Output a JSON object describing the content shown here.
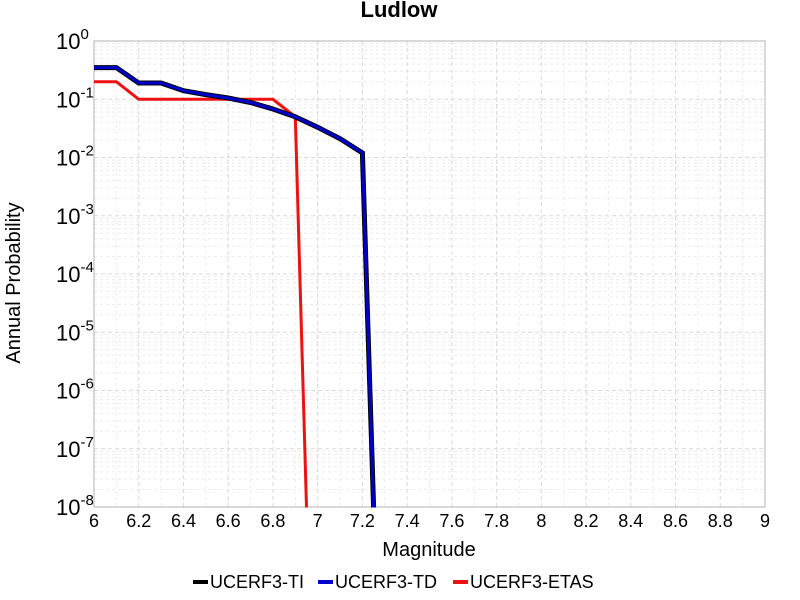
{
  "chart_data": {
    "type": "line",
    "title": "Ludlow",
    "xlabel": "Magnitude",
    "ylabel": "Annual Probability",
    "xlim": [
      6,
      9
    ],
    "ylim": [
      1e-08,
      1
    ],
    "y_scale": "log",
    "grid": true,
    "legend_position": "bottom",
    "x_ticks": [
      "6",
      "6.2",
      "6.4",
      "6.6",
      "6.8",
      "7",
      "7.2",
      "7.4",
      "7.6",
      "7.8",
      "8",
      "8.2",
      "8.4",
      "8.6",
      "8.8",
      "9"
    ],
    "y_ticks": [
      {
        "base": "10",
        "exp": "-8",
        "value": 1e-08
      },
      {
        "base": "10",
        "exp": "-7",
        "value": 1e-07
      },
      {
        "base": "10",
        "exp": "-6",
        "value": 1e-06
      },
      {
        "base": "10",
        "exp": "-5",
        "value": 1e-05
      },
      {
        "base": "10",
        "exp": "-4",
        "value": 0.0001
      },
      {
        "base": "10",
        "exp": "-3",
        "value": 0.001
      },
      {
        "base": "10",
        "exp": "-2",
        "value": 0.01
      },
      {
        "base": "10",
        "exp": "-1",
        "value": 0.1
      },
      {
        "base": "10",
        "exp": "0",
        "value": 1
      }
    ],
    "series": [
      {
        "name": "UCERF3-TI",
        "color": "#000000",
        "x": [
          6.0,
          6.1,
          6.2,
          6.3,
          6.4,
          6.5,
          6.6,
          6.7,
          6.8,
          6.9,
          7.0,
          7.1,
          7.2,
          7.25
        ],
        "y": [
          0.35,
          0.35,
          0.19,
          0.19,
          0.14,
          0.12,
          0.105,
          0.088,
          0.068,
          0.05,
          0.033,
          0.021,
          0.012,
          1e-09
        ]
      },
      {
        "name": "UCERF3-TD",
        "color": "#0000cc",
        "x": [
          6.0,
          6.1,
          6.2,
          6.3,
          6.4,
          6.5,
          6.6,
          6.7,
          6.8,
          6.9,
          7.0,
          7.1,
          7.2,
          7.25
        ],
        "y": [
          0.35,
          0.35,
          0.19,
          0.19,
          0.14,
          0.12,
          0.105,
          0.088,
          0.068,
          0.05,
          0.033,
          0.021,
          0.012,
          1e-09
        ]
      },
      {
        "name": "UCERF3-ETAS",
        "color": "#ee1111",
        "x": [
          6.0,
          6.1,
          6.2,
          6.3,
          6.4,
          6.5,
          6.6,
          6.7,
          6.8,
          6.9,
          6.95
        ],
        "y": [
          0.2,
          0.2,
          0.1,
          0.1,
          0.1,
          0.1,
          0.1,
          0.1,
          0.1,
          0.05,
          1e-09
        ]
      }
    ]
  }
}
